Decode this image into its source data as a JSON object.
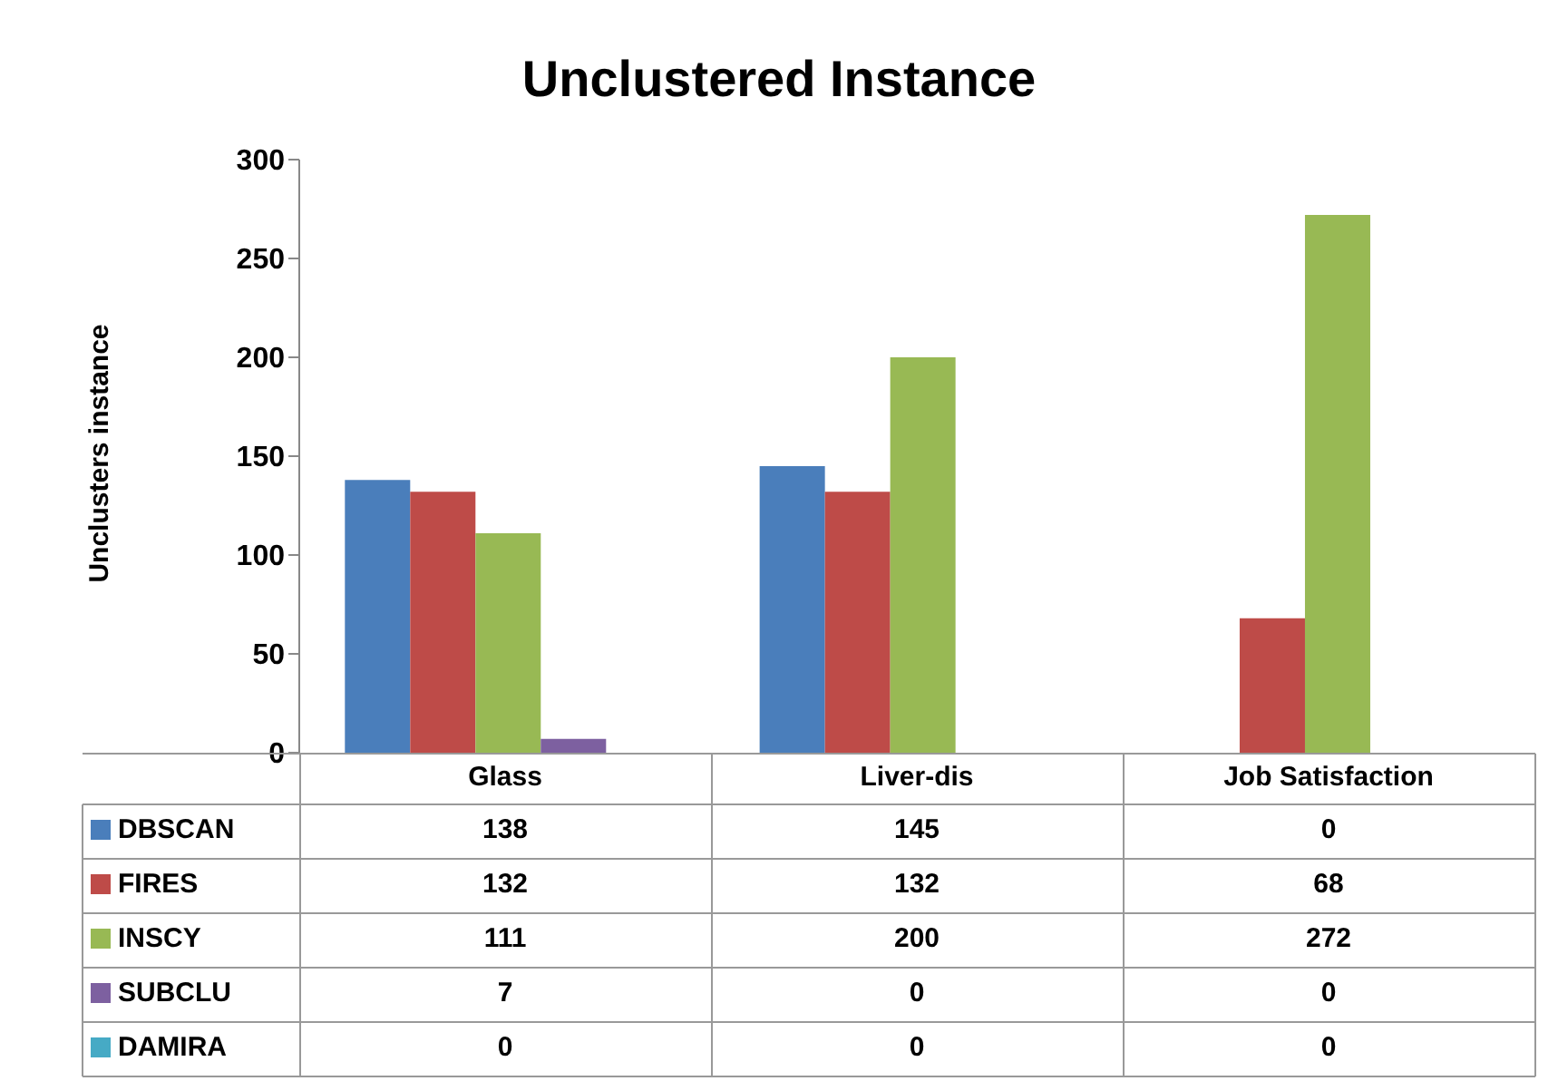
{
  "chart_data": {
    "type": "bar",
    "title": "Unclustered Instance",
    "ylabel": "Unclusters instance",
    "categories": [
      "Glass",
      "Liver-dis",
      "Job Satisfaction"
    ],
    "series": [
      {
        "name": "DBSCAN",
        "color": "#4a7ebb",
        "values": [
          138,
          145,
          0
        ]
      },
      {
        "name": "FIRES",
        "color": "#be4b48",
        "values": [
          132,
          132,
          68
        ]
      },
      {
        "name": "INSCY",
        "color": "#98b954",
        "values": [
          111,
          200,
          272
        ]
      },
      {
        "name": "SUBCLU",
        "color": "#7d60a0",
        "values": [
          7,
          0,
          0
        ]
      },
      {
        "name": "DAMIRA",
        "color": "#46aac5",
        "values": [
          0,
          0,
          0
        ]
      }
    ],
    "ylim": [
      0,
      300
    ],
    "yticks": [
      0,
      50,
      100,
      150,
      200,
      250,
      300
    ],
    "data_labels": true,
    "legend": "bottom left"
  }
}
